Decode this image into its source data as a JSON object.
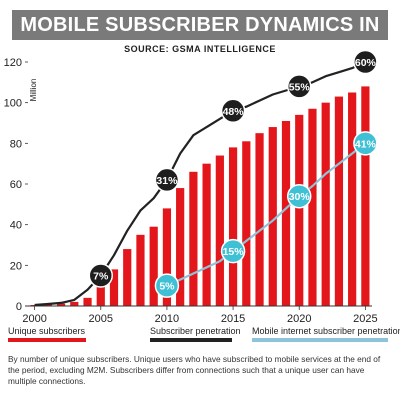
{
  "title": "MOBILE SUBSCRIBER DYNAMICS IN BANGLADESH",
  "source": "SOURCE: GSMA INTELLIGENCE",
  "footnote": "By number of unique subscribers. Unique users who have subscribed to mobile services at the end of the period, excluding M2M. Subscribers differ from connections such that a unique user can have multiple connections.",
  "colors": {
    "bars": "#e3161b",
    "penetration_line": "#222222",
    "internet_line": "#8fc3d9",
    "black_marker": "#1e1e1e",
    "cyan_marker": "#3fc0d4"
  },
  "legend": {
    "unique_subscribers": "Unique subscribers",
    "subscriber_penetration": "Subscriber penetration",
    "internet_penetration": "Mobile internet  subscriber penetration"
  },
  "chart_data": {
    "type": "bar",
    "title": "MOBILE SUBSCRIBER DYNAMICS IN BANGLADESH",
    "ylabel": "Million",
    "xlim": [
      2000,
      2025
    ],
    "ylim": [
      0,
      120
    ],
    "yticks": [
      0,
      20,
      40,
      60,
      80,
      100,
      120
    ],
    "xticks": [
      2000,
      2005,
      2010,
      2015,
      2020,
      2025
    ],
    "grid": false,
    "legend_position": "bottom",
    "x": [
      2000,
      2001,
      2002,
      2003,
      2004,
      2005,
      2006,
      2007,
      2008,
      2009,
      2010,
      2011,
      2012,
      2013,
      2014,
      2015,
      2016,
      2017,
      2018,
      2019,
      2020,
      2021,
      2022,
      2023,
      2024,
      2025
    ],
    "series": [
      {
        "name": "Unique subscribers",
        "type": "bar",
        "values": [
          0.5,
          0.8,
          1.2,
          2.0,
          4.0,
          10,
          18,
          28,
          35,
          39,
          48,
          58,
          66,
          70,
          74,
          78,
          81,
          85,
          88,
          91,
          94,
          97,
          100,
          103,
          105,
          108
        ]
      },
      {
        "name": "Subscriber penetration",
        "type": "line",
        "values": [
          0.5,
          1,
          1.5,
          3,
          8,
          15,
          25,
          37,
          47,
          53,
          62,
          75,
          84,
          88,
          92,
          96,
          98,
          101,
          104,
          106,
          108,
          110,
          113,
          115,
          117,
          120
        ]
      },
      {
        "name": "Mobile internet  subscriber penetration",
        "type": "line",
        "x": [
          2010,
          2011,
          2012,
          2013,
          2014,
          2015,
          2016,
          2017,
          2018,
          2019,
          2020,
          2021,
          2022,
          2023,
          2024,
          2025
        ],
        "values": [
          10,
          13,
          16,
          19,
          22,
          27,
          32,
          37,
          42,
          48,
          54,
          59,
          65,
          70,
          75,
          80
        ]
      }
    ],
    "annotations": [
      {
        "series": "Subscriber penetration",
        "x": 2005,
        "y": 15,
        "label": "7%"
      },
      {
        "series": "Subscriber penetration",
        "x": 2010,
        "y": 62,
        "label": "31%"
      },
      {
        "series": "Subscriber penetration",
        "x": 2015,
        "y": 96,
        "label": "48%"
      },
      {
        "series": "Subscriber penetration",
        "x": 2020,
        "y": 108,
        "label": "55%"
      },
      {
        "series": "Subscriber penetration",
        "x": 2025,
        "y": 120,
        "label": "60%"
      },
      {
        "series": "Mobile internet  subscriber penetration",
        "x": 2010,
        "y": 10,
        "label": "5%"
      },
      {
        "series": "Mobile internet  subscriber penetration",
        "x": 2015,
        "y": 27,
        "label": "15%"
      },
      {
        "series": "Mobile internet  subscriber penetration",
        "x": 2020,
        "y": 54,
        "label": "30%"
      },
      {
        "series": "Mobile internet  subscriber penetration",
        "x": 2025,
        "y": 80,
        "label": "41%"
      }
    ]
  }
}
